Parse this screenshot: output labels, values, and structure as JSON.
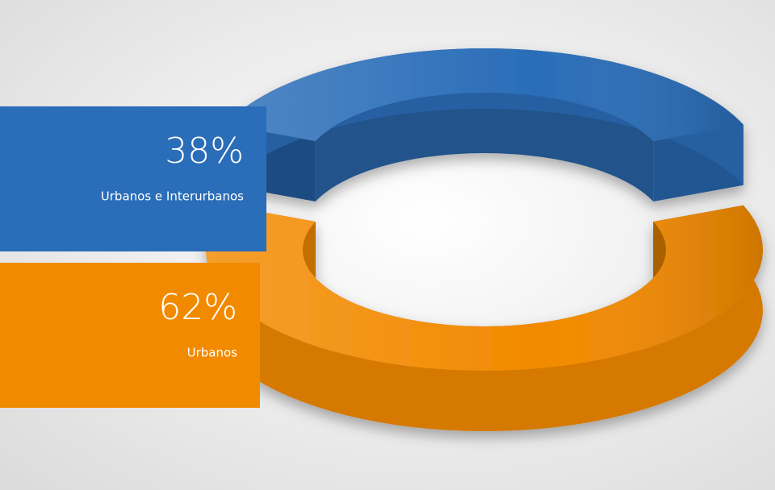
{
  "chart_data": {
    "type": "pie",
    "categories": [
      "Urbanos e Interurbanos",
      "Urbanos"
    ],
    "values": [
      38,
      62
    ],
    "value_labels": [
      "38%",
      "62%"
    ],
    "colors": [
      "#2a6db8",
      "#f28a00"
    ]
  }
}
